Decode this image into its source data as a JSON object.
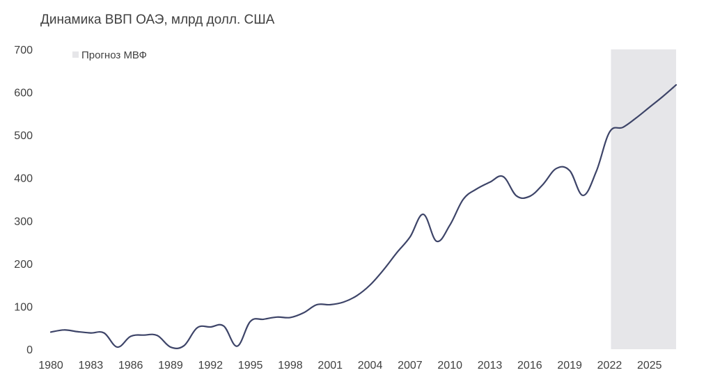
{
  "chart_data": {
    "type": "line",
    "title": "Динамика ВВП ОАЭ, млрд долл. США",
    "xlabel": "",
    "ylabel": "",
    "ylim": [
      0,
      700
    ],
    "yticks": [
      "0",
      "100",
      "200",
      "300",
      "400",
      "500",
      "600",
      "700"
    ],
    "xticks": [
      "1980",
      "1983",
      "1986",
      "1989",
      "1992",
      "1995",
      "1998",
      "2001",
      "2004",
      "2007",
      "2010",
      "2013",
      "2016",
      "2019",
      "2022",
      "2025"
    ],
    "grid": false,
    "legend": {
      "position": "top-left",
      "label": "Прогноз МВФ",
      "color": "#E6E6E9"
    },
    "forecast_range": [
      2022,
      2027
    ],
    "series": [
      {
        "color": "#3D4468",
        "x": [
          1980,
          1981,
          1982,
          1983,
          1984,
          1985,
          1986,
          1987,
          1988,
          1989,
          1990,
          1991,
          1992,
          1993,
          1994,
          1995,
          1996,
          1997,
          1998,
          1999,
          2000,
          2001,
          2002,
          2003,
          2004,
          2005,
          2006,
          2007,
          2008,
          2009,
          2010,
          2011,
          2012,
          2013,
          2014,
          2015,
          2016,
          2017,
          2018,
          2019,
          2020,
          2021,
          2022,
          2023,
          2024,
          2025,
          2026,
          2027
        ],
        "values": [
          40,
          45,
          41,
          38,
          38,
          5,
          30,
          33,
          32,
          5,
          8,
          50,
          52,
          54,
          7,
          65,
          70,
          75,
          74,
          85,
          104,
          104,
          110,
          125,
          150,
          185,
          225,
          262,
          315,
          252,
          290,
          350,
          374,
          390,
          403,
          358,
          357,
          385,
          422,
          417,
          359,
          415,
          507,
          518,
          540,
          565,
          590,
          617
        ]
      }
    ]
  }
}
